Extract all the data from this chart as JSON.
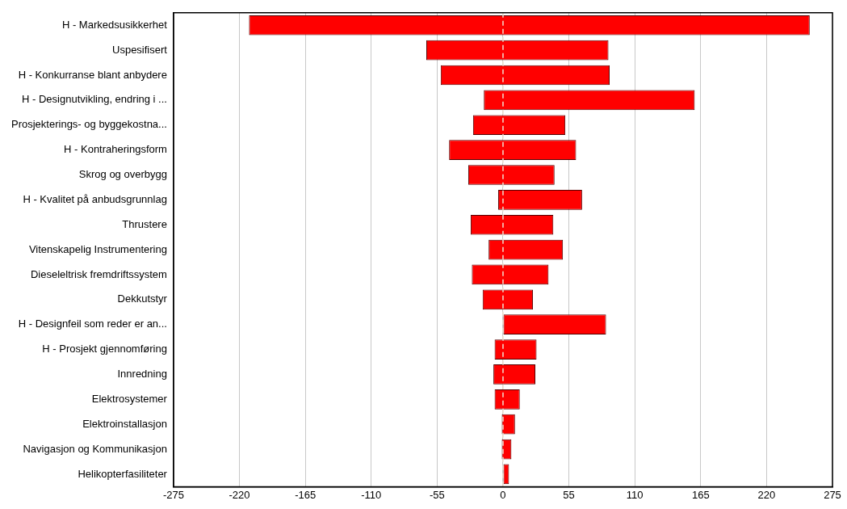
{
  "chart_data": {
    "type": "bar",
    "orientation": "horizontal",
    "categories": [
      "H - Markedsusikkerhet",
      "Uspesifisert",
      "H - Konkurranse blant anbydere",
      "H - Designutvikling, endring i ...",
      "Prosjekterings- og byggekostna...",
      "H - Kontraheringsform",
      "Skrog og overbygg",
      "H - Kvalitet på anbudsgrunnlag",
      "Thrustere",
      "Vitenskapelig Instrumentering",
      "Dieseleltrisk fremdriftssystem",
      "Dekkutstyr",
      "H - Designfeil som reder er an...",
      "H - Prosjekt gjennomføring",
      "Innredning",
      "Elektrosystemer",
      "Elektroinstallasjon",
      "Navigasjon og Kommunikasjon",
      "Helikopterfasiliteter"
    ],
    "base": [
      -212,
      -64,
      -52,
      -16,
      -25,
      -45,
      -29,
      -4,
      -27,
      -12,
      -26,
      -17,
      0,
      -7,
      -8,
      -7,
      -1,
      -1,
      0
    ],
    "values": [
      468,
      152,
      141,
      176,
      77,
      106,
      72,
      70,
      69,
      62,
      64,
      42,
      86,
      35,
      35,
      21,
      11,
      8,
      5
    ],
    "color": "#ff0000",
    "xlim": [
      -275,
      275
    ],
    "xticks": [
      -275,
      -220,
      -165,
      -110,
      -55,
      0,
      55,
      110,
      165,
      220,
      275
    ],
    "grid": "x",
    "ref_lines": [
      {
        "axis": "x",
        "value": 0,
        "color": "#f0e0d0",
        "line_style": "dashed"
      }
    ]
  }
}
